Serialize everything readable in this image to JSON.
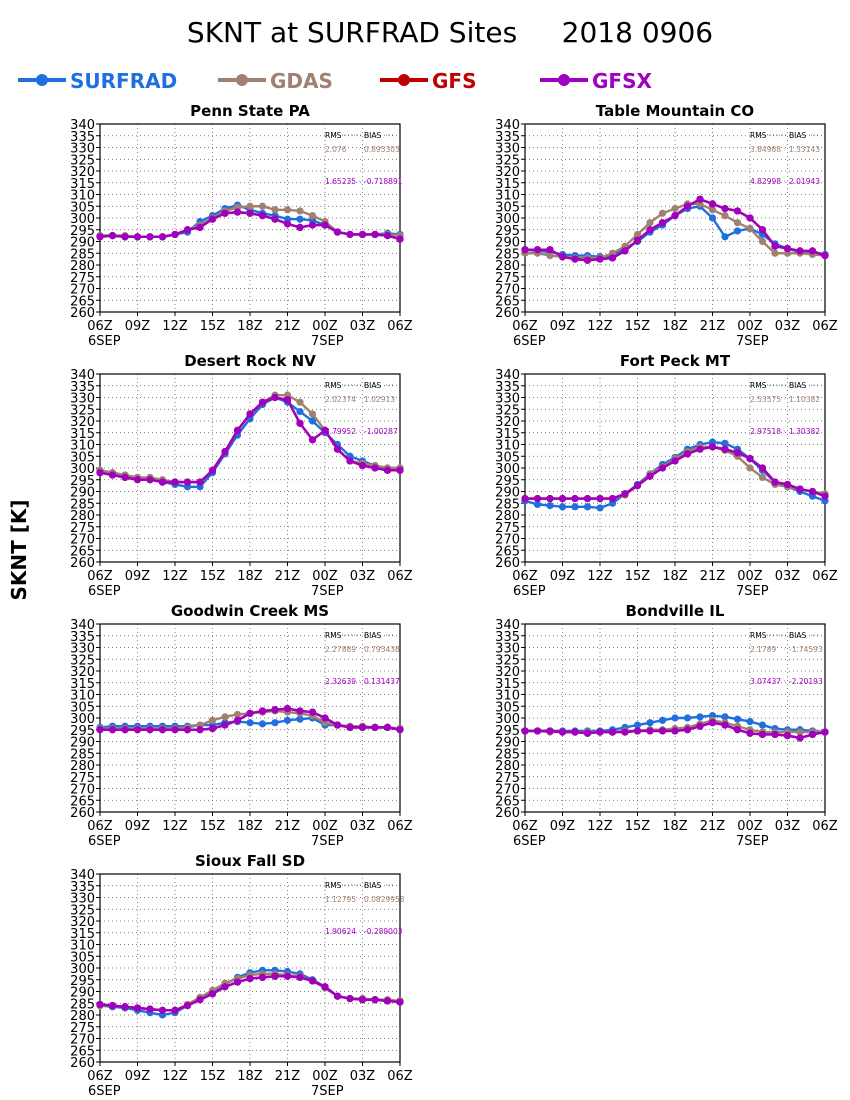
{
  "title": "SKNT at SURFRAD Sites     2018 0906",
  "ylabel": "SKNT [K]",
  "legend": [
    {
      "name": "SURFRAD",
      "color": "#1f6fde"
    },
    {
      "name": "GDAS",
      "color": "#a08070"
    },
    {
      "name": "GFS",
      "color": "#c00000"
    },
    {
      "name": "GFSX",
      "color": "#a000c0"
    }
  ],
  "axes": {
    "yticks": [
      260,
      265,
      270,
      275,
      280,
      285,
      290,
      295,
      300,
      305,
      310,
      315,
      320,
      325,
      330,
      335,
      340
    ],
    "ylim": [
      260,
      340
    ],
    "xticks": [
      "06Z",
      "09Z",
      "12Z",
      "15Z",
      "18Z",
      "21Z",
      "00Z",
      "03Z",
      "06Z"
    ],
    "xdates": [
      "6SEP",
      "7SEP"
    ],
    "xlim": [
      0,
      24
    ],
    "grid": true
  },
  "stats_headers": {
    "rms": "RMS",
    "bias": "BIAS"
  },
  "chart_data": [
    {
      "type": "line",
      "title": "Penn State PA",
      "stats": [
        {
          "rms": "2.076",
          "bias": "0.895303",
          "color": "#a08070"
        },
        {
          "rms": "1.65235",
          "bias": "-0.718891",
          "color": "#a000c0"
        }
      ],
      "x": [
        0,
        1,
        2,
        3,
        4,
        5,
        6,
        7,
        8,
        9,
        10,
        11,
        12,
        13,
        14,
        15,
        16,
        17,
        18,
        19,
        20,
        21,
        22,
        23,
        24
      ],
      "series": [
        {
          "name": "SURFRAD",
          "values": [
            292.5,
            292.5,
            292,
            292,
            292,
            292,
            293,
            294,
            298.5,
            301,
            304,
            305.5,
            303.5,
            302,
            301,
            299.5,
            299.5,
            299,
            297,
            294,
            293,
            293,
            293,
            293.5,
            293
          ]
        },
        {
          "name": "GDAS",
          "values": [
            292.5,
            292.5,
            292.5,
            292,
            292,
            292,
            293,
            295,
            297,
            300,
            303,
            304.5,
            305,
            305,
            303.5,
            303.5,
            303,
            301,
            298.5,
            294,
            293,
            293,
            293,
            293,
            292.5
          ]
        },
        {
          "name": "GFS",
          "values": [
            292,
            292.5,
            292,
            292,
            292,
            292,
            293,
            295,
            296,
            299.5,
            302,
            302.5,
            302,
            301,
            299.5,
            297.5,
            296,
            297,
            297,
            294,
            293,
            293,
            293,
            292.5,
            291
          ]
        },
        {
          "name": "GFSX",
          "values": [
            292,
            292.5,
            292,
            292,
            292,
            292,
            293,
            295,
            296,
            299.5,
            302,
            302.5,
            302,
            301,
            299.5,
            297.5,
            296,
            297,
            297,
            294,
            293,
            293,
            293,
            292.5,
            291
          ]
        }
      ]
    },
    {
      "type": "line",
      "title": "Table Mountain CO",
      "stats": [
        {
          "rms": "3.84988",
          "bias": "1.33143",
          "color": "#a08070"
        },
        {
          "rms": "4.82998",
          "bias": "2.01943",
          "color": "#a000c0"
        }
      ],
      "x": [
        0,
        1,
        2,
        3,
        4,
        5,
        6,
        7,
        8,
        9,
        10,
        11,
        12,
        13,
        14,
        15,
        16,
        17,
        18,
        19,
        20,
        21,
        22,
        23,
        24
      ],
      "series": [
        {
          "name": "SURFRAD",
          "values": [
            286.5,
            286,
            285.5,
            284.5,
            284,
            284,
            283.5,
            284,
            287,
            290,
            294,
            297,
            301,
            304,
            305,
            300,
            292,
            294.5,
            295.5,
            293,
            289,
            287,
            285.5,
            285.5,
            284.5
          ]
        },
        {
          "name": "GDAS",
          "values": [
            285,
            285,
            284,
            283.5,
            283,
            283,
            283,
            285,
            288,
            293,
            298,
            302,
            304,
            306,
            306,
            303.5,
            301,
            298,
            295.5,
            290,
            285,
            285,
            285,
            284.5,
            284
          ]
        },
        {
          "name": "GFS",
          "values": [
            286.5,
            286.5,
            286.5,
            283.5,
            282.5,
            282,
            282.5,
            283,
            286,
            290.5,
            295,
            298,
            301,
            305,
            308,
            306,
            304,
            303,
            300,
            295,
            288,
            287,
            286,
            286,
            284
          ]
        },
        {
          "name": "GFSX",
          "values": [
            286.5,
            286.5,
            286.5,
            283.5,
            282.5,
            282,
            282.5,
            283,
            286,
            290.5,
            295,
            298,
            301,
            305,
            308,
            306,
            304,
            303,
            300,
            295,
            288,
            287,
            286,
            286,
            284
          ]
        }
      ]
    },
    {
      "type": "line",
      "title": "Desert Rock NV",
      "stats": [
        {
          "rms": "2.02374",
          "bias": "1.02913",
          "color": "#a08070"
        },
        {
          "rms": "3.79952",
          "bias": "-1.00287",
          "color": "#a000c0"
        }
      ],
      "x": [
        0,
        1,
        2,
        3,
        4,
        5,
        6,
        7,
        8,
        9,
        10,
        11,
        12,
        13,
        14,
        15,
        16,
        17,
        18,
        19,
        20,
        21,
        22,
        23,
        24
      ],
      "series": [
        {
          "name": "SURFRAD",
          "values": [
            299,
            298,
            297,
            296,
            295,
            294,
            293,
            292,
            292,
            298,
            306,
            314,
            321,
            327,
            330,
            328,
            324,
            320,
            315,
            310,
            305,
            303,
            301,
            300,
            300
          ]
        },
        {
          "name": "GDAS",
          "values": [
            299,
            298,
            297,
            296,
            296,
            295,
            294,
            294,
            294,
            299,
            307,
            316,
            323,
            328,
            331,
            331,
            328,
            323,
            316,
            308,
            303,
            302,
            301,
            300,
            300
          ]
        },
        {
          "name": "GFS",
          "values": [
            298,
            297,
            296,
            295,
            295,
            294,
            294,
            294,
            294,
            299,
            307,
            316,
            323,
            328,
            330,
            329,
            319,
            312,
            316,
            308,
            303,
            301,
            300,
            299,
            299
          ]
        },
        {
          "name": "GFSX",
          "values": [
            298,
            297,
            296,
            295,
            295,
            294,
            294,
            294,
            294,
            299,
            307,
            316,
            323,
            328,
            330,
            329,
            319,
            312,
            316,
            308,
            303,
            301,
            300,
            299,
            299
          ]
        }
      ]
    },
    {
      "type": "line",
      "title": "Fort Peck MT",
      "stats": [
        {
          "rms": "2.53575",
          "bias": "1.10382",
          "color": "#a08070"
        },
        {
          "rms": "2.97518",
          "bias": "1.30382",
          "color": "#a000c0"
        }
      ],
      "x": [
        0,
        1,
        2,
        3,
        4,
        5,
        6,
        7,
        8,
        9,
        10,
        11,
        12,
        13,
        14,
        15,
        16,
        17,
        18,
        19,
        20,
        21,
        22,
        23,
        24
      ],
      "series": [
        {
          "name": "SURFRAD",
          "values": [
            286,
            284.5,
            284,
            283.5,
            283.5,
            283.5,
            283,
            285,
            289,
            293,
            297.5,
            301.5,
            304.5,
            308,
            310,
            311,
            310.5,
            308,
            304,
            299,
            294,
            292,
            290,
            288,
            286
          ]
        },
        {
          "name": "GDAS",
          "values": [
            287,
            287,
            287,
            287,
            287,
            287,
            287,
            287,
            288.5,
            292.5,
            297.5,
            300.5,
            304,
            307,
            309,
            309,
            307.5,
            305,
            300,
            296,
            293,
            292,
            291,
            290,
            289
          ]
        },
        {
          "name": "GFS",
          "values": [
            287,
            287,
            287,
            287,
            287,
            287,
            287,
            287,
            289,
            292.5,
            296.5,
            300,
            303,
            306,
            308,
            309,
            308,
            306.5,
            304,
            300,
            294,
            293,
            291,
            290,
            288
          ]
        },
        {
          "name": "GFSX",
          "values": [
            287,
            287,
            287,
            287,
            287,
            287,
            287,
            287,
            289,
            292.5,
            296.5,
            300,
            303,
            306,
            308,
            309,
            308,
            306.5,
            304,
            300,
            294,
            293,
            291,
            290,
            288
          ]
        }
      ]
    },
    {
      "type": "line",
      "title": "Goodwin Creek MS",
      "stats": [
        {
          "rms": "2.27889",
          "bias": "0.795438",
          "color": "#a08070"
        },
        {
          "rms": "2.32639",
          "bias": "0.131437",
          "color": "#a000c0"
        }
      ],
      "x": [
        0,
        1,
        2,
        3,
        4,
        5,
        6,
        7,
        8,
        9,
        10,
        11,
        12,
        13,
        14,
        15,
        16,
        17,
        18,
        19,
        20,
        21,
        22,
        23,
        24
      ],
      "series": [
        {
          "name": "SURFRAD",
          "values": [
            296,
            296.5,
            296.5,
            296.5,
            296.5,
            296.5,
            296.5,
            296.5,
            297,
            297,
            298,
            298.5,
            298,
            297.5,
            298,
            299,
            299.5,
            300,
            297,
            297,
            296,
            296,
            296,
            296,
            295.5
          ]
        },
        {
          "name": "GDAS",
          "values": [
            295.5,
            295.5,
            295.5,
            295.5,
            295.5,
            295.5,
            295.5,
            296,
            297,
            299,
            300.5,
            301.5,
            302,
            302.5,
            303,
            302.5,
            302,
            301,
            298,
            297,
            296.5,
            296.5,
            296,
            296,
            295.5
          ]
        },
        {
          "name": "GFS",
          "values": [
            295,
            295,
            295,
            295,
            295,
            295,
            295,
            295,
            295,
            295.5,
            297,
            299,
            302,
            303,
            303.5,
            304,
            303,
            302.5,
            300,
            297,
            296,
            296,
            296,
            296,
            295
          ]
        },
        {
          "name": "GFSX",
          "values": [
            295,
            295,
            295,
            295,
            295,
            295,
            295,
            295,
            295,
            295.5,
            297,
            299,
            302,
            303,
            303.5,
            304,
            303,
            302.5,
            300,
            297,
            296,
            296,
            296,
            296,
            295
          ]
        }
      ]
    },
    {
      "type": "line",
      "title": "Bondville IL",
      "stats": [
        {
          "rms": "2.1789",
          "bias": "-1.74593",
          "color": "#a08070"
        },
        {
          "rms": "3.07437",
          "bias": "-2.20193",
          "color": "#a000c0"
        }
      ],
      "x": [
        0,
        1,
        2,
        3,
        4,
        5,
        6,
        7,
        8,
        9,
        10,
        11,
        12,
        13,
        14,
        15,
        16,
        17,
        18,
        19,
        20,
        21,
        22,
        23,
        24
      ],
      "series": [
        {
          "name": "SURFRAD",
          "values": [
            294.5,
            294.5,
            294.5,
            294.5,
            294.5,
            294.5,
            294.5,
            295,
            296,
            297,
            298,
            299,
            300,
            300,
            300.5,
            301,
            300.5,
            299.5,
            298.5,
            297,
            295.5,
            295,
            295,
            294.5,
            294
          ]
        },
        {
          "name": "GDAS",
          "values": [
            294.5,
            294.5,
            294,
            294,
            294,
            294,
            294,
            294,
            294.5,
            294.5,
            295,
            295,
            295.5,
            296,
            297.5,
            299,
            298,
            296.5,
            295,
            294,
            294,
            294,
            294,
            294,
            294
          ]
        },
        {
          "name": "GFS",
          "values": [
            294.5,
            294.5,
            294.5,
            294,
            294,
            293.5,
            294,
            294,
            294,
            294.5,
            294.5,
            294.5,
            294.5,
            295,
            296.5,
            298,
            297,
            295,
            293.5,
            293,
            293,
            292.5,
            291.5,
            293,
            294
          ]
        },
        {
          "name": "GFSX",
          "values": [
            294.5,
            294.5,
            294.5,
            294,
            294,
            293.5,
            294,
            294,
            294,
            294.5,
            294.5,
            294.5,
            294.5,
            295,
            296.5,
            298,
            297,
            295,
            293.5,
            293,
            293,
            292.5,
            291.5,
            293,
            294
          ]
        }
      ]
    },
    {
      "type": "line",
      "title": "Sioux Fall SD",
      "stats": [
        {
          "rms": "1.12795",
          "bias": "0.0829958",
          "color": "#a08070"
        },
        {
          "rms": "1.90624",
          "bias": "-0.289003",
          "color": "#a000c0"
        }
      ],
      "x": [
        0,
        1,
        2,
        3,
        4,
        5,
        6,
        7,
        8,
        9,
        10,
        11,
        12,
        13,
        14,
        15,
        16,
        17,
        18,
        19,
        20,
        21,
        22,
        23,
        24
      ],
      "series": [
        {
          "name": "SURFRAD",
          "values": [
            284,
            283.5,
            283,
            282,
            281,
            280,
            281,
            284,
            287,
            290,
            293,
            296,
            298,
            299,
            299,
            298.5,
            297.5,
            295,
            292,
            288,
            287,
            286.5,
            286.5,
            286,
            286
          ]
        },
        {
          "name": "GDAS",
          "values": [
            284,
            284,
            283.5,
            283,
            282.5,
            282,
            282,
            284.5,
            287.5,
            290.5,
            293.5,
            295.5,
            297,
            297.5,
            297.5,
            297,
            296.5,
            294.5,
            291.5,
            288,
            287,
            287,
            286.5,
            286.5,
            286
          ]
        },
        {
          "name": "GFS",
          "values": [
            284.5,
            284,
            283.5,
            283,
            282.5,
            282,
            282,
            284,
            286.5,
            289,
            292,
            294,
            295.5,
            296,
            296.5,
            296.5,
            296,
            294.5,
            292,
            288,
            287,
            286.5,
            286.5,
            286,
            285.5
          ]
        },
        {
          "name": "GFSX",
          "values": [
            284.5,
            284,
            283.5,
            283,
            282.5,
            282,
            282,
            284,
            286.5,
            289,
            292,
            294,
            295.5,
            296,
            296.5,
            296.5,
            296,
            294.5,
            292,
            288,
            287,
            286.5,
            286.5,
            286,
            285.5
          ]
        }
      ]
    }
  ]
}
